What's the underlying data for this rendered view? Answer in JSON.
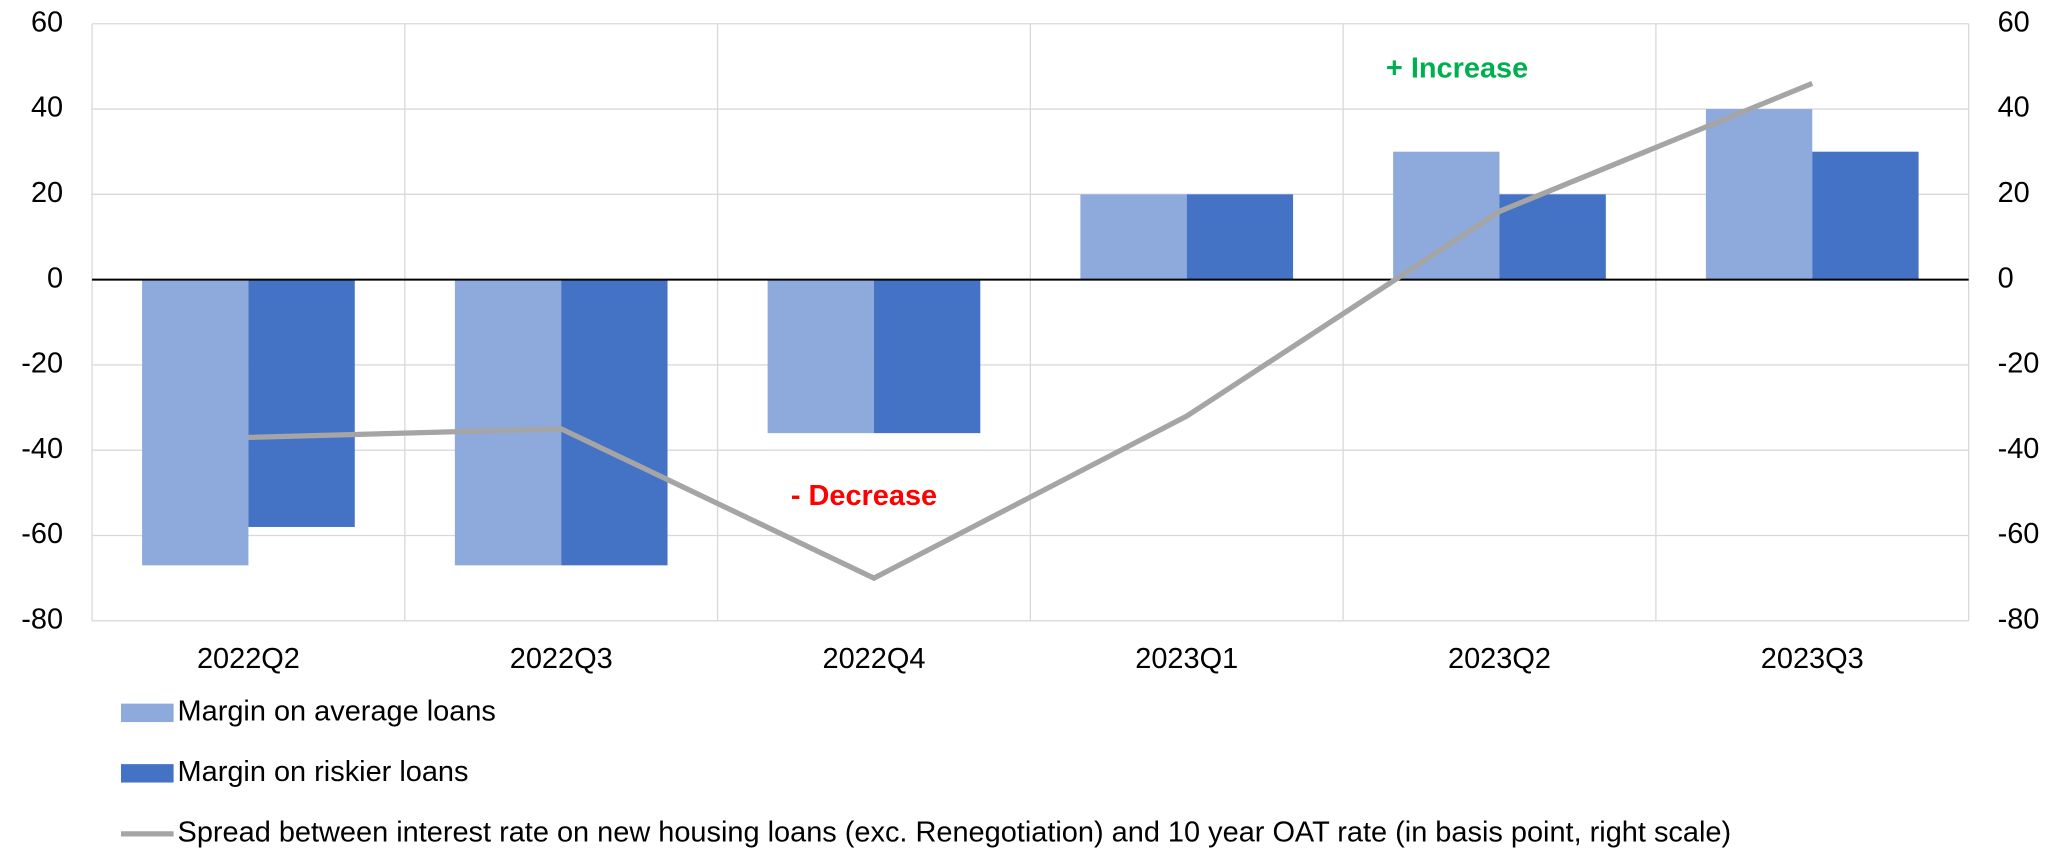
{
  "chart_data": {
    "type": "bar",
    "categories": [
      "2022Q2",
      "2022Q3",
      "2022Q4",
      "2023Q1",
      "2023Q2",
      "2023Q3"
    ],
    "series": [
      {
        "name": "Margin on average loans",
        "type": "bar",
        "color": "#8eaadc",
        "values": [
          -67,
          -67,
          -36,
          20,
          30,
          40
        ]
      },
      {
        "name": "Margin on riskier loans",
        "type": "bar",
        "color": "#4472c4",
        "values": [
          -58,
          -67,
          -36,
          20,
          20,
          30
        ]
      },
      {
        "name": "Spread between interest rate on new housing loans (exc. Renegotiation) and 10 year OAT rate (in basis point, right scale)",
        "type": "line",
        "axis": "y2",
        "color": "#a5a5a5",
        "values": [
          -37,
          -35,
          -70,
          -32,
          16,
          46
        ]
      }
    ],
    "ylim": [
      -80,
      60
    ],
    "yticks": [
      -80,
      -60,
      -40,
      -20,
      0,
      20,
      40,
      60
    ],
    "y2lim": [
      -80,
      60
    ],
    "y2ticks": [
      -80,
      -60,
      -40,
      -20,
      0,
      20,
      40,
      60
    ],
    "grid": true,
    "legend": "bottom",
    "annotations": [
      {
        "text": "+ Increase",
        "color": "#00b050"
      },
      {
        "text": "- Decrease",
        "color": "#ff0000"
      }
    ]
  }
}
